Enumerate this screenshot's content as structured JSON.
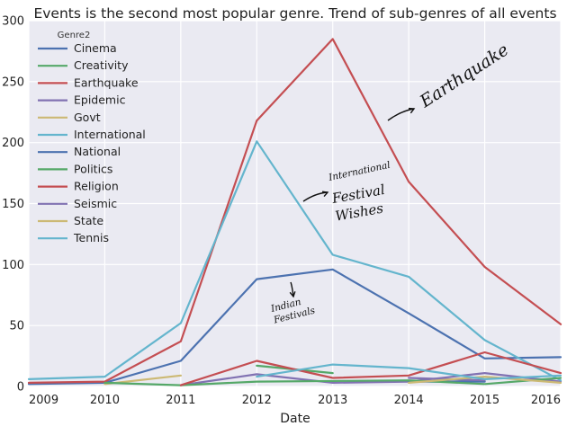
{
  "chart_data": {
    "type": "line",
    "title": "Events is the second most popular genre. Trend of sub-genres of all events",
    "xlabel": "Date",
    "ylabel": "",
    "x": [
      2009,
      2010,
      2011,
      2012,
      2013,
      2014,
      2015,
      2016
    ],
    "x_tick_labels": [
      "2009",
      "2010",
      "2011",
      "2012",
      "2013",
      "2014",
      "2015",
      "2016"
    ],
    "y_ticks": [
      "0",
      "50",
      "100",
      "150",
      "200",
      "250",
      "300"
    ],
    "xlim": [
      2009,
      2016
    ],
    "ylim": [
      0,
      300
    ],
    "grid": true,
    "background": "#eaeaf2",
    "legend": {
      "title": "Genre2",
      "placement": "top-left"
    },
    "series": [
      {
        "name": "Cinema",
        "color": "#4c72b0",
        "points": [
          [
            2009,
            2
          ],
          [
            2010,
            3
          ],
          [
            2011,
            21
          ],
          [
            2012,
            88
          ],
          [
            2013,
            96
          ],
          [
            2014,
            60
          ],
          [
            2015,
            23
          ],
          [
            2016,
            24
          ]
        ]
      },
      {
        "name": "Creativity",
        "color": "#55a868",
        "points": [
          [
            2012,
            17
          ],
          [
            2013,
            11
          ]
        ]
      },
      {
        "name": "Earthquake",
        "color": "#c44e52",
        "points": [
          [
            2009,
            3
          ],
          [
            2010,
            4
          ],
          [
            2011,
            37
          ],
          [
            2012,
            218
          ],
          [
            2013,
            285
          ],
          [
            2014,
            168
          ],
          [
            2015,
            98
          ],
          [
            2016,
            51
          ]
        ]
      },
      {
        "name": "Epidemic",
        "color": "#8172b2",
        "points": [
          [
            2011,
            1
          ],
          [
            2012,
            10
          ],
          [
            2013,
            3
          ],
          [
            2014,
            4
          ],
          [
            2015,
            11
          ],
          [
            2016,
            4
          ]
        ]
      },
      {
        "name": "Govt",
        "color": "#ccb974",
        "points": [
          [
            2010,
            2
          ],
          [
            2011,
            9
          ]
        ]
      },
      {
        "name": "International",
        "color": "#64b5cd",
        "points": [
          [
            2009,
            6
          ],
          [
            2010,
            8
          ],
          [
            2011,
            52
          ],
          [
            2012,
            201
          ],
          [
            2013,
            108
          ],
          [
            2014,
            90
          ],
          [
            2015,
            38
          ],
          [
            2016,
            5
          ]
        ]
      },
      {
        "name": "National",
        "color": "#4c72b0",
        "points": [
          [
            2014,
            4
          ],
          [
            2015,
            4
          ]
        ]
      },
      {
        "name": "Politics",
        "color": "#55a868",
        "points": [
          [
            2010,
            3
          ],
          [
            2011,
            1
          ],
          [
            2012,
            4
          ],
          [
            2014,
            5
          ],
          [
            2015,
            2
          ],
          [
            2016,
            7
          ]
        ]
      },
      {
        "name": "Religion",
        "color": "#c44e52",
        "points": [
          [
            2011,
            1
          ],
          [
            2012,
            21
          ],
          [
            2013,
            7
          ],
          [
            2014,
            9
          ],
          [
            2015,
            28
          ],
          [
            2016,
            11
          ]
        ]
      },
      {
        "name": "Seismic",
        "color": "#8172b2",
        "points": [
          [
            2014,
            7
          ],
          [
            2015,
            5
          ]
        ]
      },
      {
        "name": "State",
        "color": "#ccb974",
        "points": [
          [
            2014,
            3
          ],
          [
            2015,
            8
          ],
          [
            2016,
            3
          ]
        ]
      },
      {
        "name": "Tennis",
        "color": "#64b5cd",
        "points": [
          [
            2012,
            8
          ],
          [
            2013,
            18
          ],
          [
            2014,
            15
          ],
          [
            2015,
            6
          ],
          [
            2016,
            9
          ]
        ]
      }
    ],
    "annotations": [
      {
        "lines": [
          "Earthquake"
        ],
        "anchor_x": 2013.6,
        "anchor_y": 220,
        "arrow": true
      },
      {
        "lines": [
          "International",
          "Festival",
          "Wishes"
        ],
        "anchor_x": 2012.55,
        "anchor_y": 150,
        "arrow": true
      },
      {
        "lines": [
          "Indian",
          "Festivals"
        ],
        "anchor_x": 2012.45,
        "anchor_y": 78,
        "arrow": true
      }
    ]
  }
}
